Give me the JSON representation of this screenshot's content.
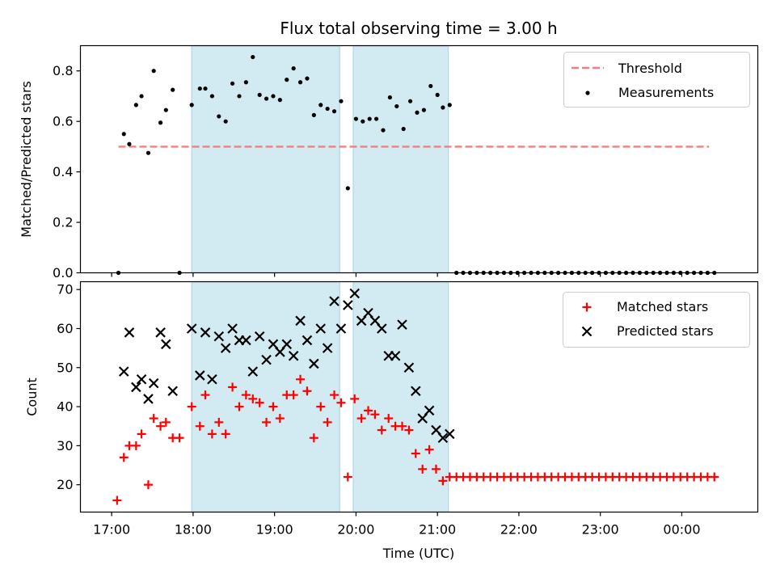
{
  "title": "Flux total observing time = 3.00 h",
  "xlabel": "Time (UTC)",
  "x_ticks": [
    "17:00",
    "18:00",
    "19:00",
    "20:00",
    "21:00",
    "22:00",
    "23:00",
    "00:00"
  ],
  "colors": {
    "threshold": "#f08080",
    "measurement": "#000000",
    "matched": "#ff0000",
    "predicted": "#000000",
    "span_fill": "#add8e6"
  },
  "chart_data": [
    {
      "type": "scatter",
      "ylabel": "Matched/Predicted stars",
      "xlim": [
        "16:37",
        "00:56"
      ],
      "ylim": [
        0,
        0.9
      ],
      "y_ticks": [
        "0.0",
        "0.2",
        "0.4",
        "0.6",
        "0.8"
      ],
      "shaded_spans": [
        [
          "17:59",
          "19:48"
        ],
        [
          "19:58",
          "21:08"
        ]
      ],
      "legend": {
        "placement": "top-right",
        "threshold_label": "Threshold",
        "measurements_label": "Measurements"
      },
      "threshold": {
        "value": 0.5,
        "x_range": [
          "17:05",
          "00:20"
        ]
      },
      "measurements": [
        {
          "t": "17:05",
          "v": 0.0
        },
        {
          "t": "17:09",
          "v": 0.55
        },
        {
          "t": "17:13",
          "v": 0.51
        },
        {
          "t": "17:18",
          "v": 0.665
        },
        {
          "t": "17:22",
          "v": 0.7
        },
        {
          "t": "17:27",
          "v": 0.475
        },
        {
          "t": "17:31",
          "v": 0.8
        },
        {
          "t": "17:36",
          "v": 0.595
        },
        {
          "t": "17:40",
          "v": 0.645
        },
        {
          "t": "17:45",
          "v": 0.725
        },
        {
          "t": "17:50",
          "v": 0.0
        },
        {
          "t": "17:59",
          "v": 0.665
        },
        {
          "t": "18:05",
          "v": 0.73
        },
        {
          "t": "18:09",
          "v": 0.73
        },
        {
          "t": "18:14",
          "v": 0.7
        },
        {
          "t": "18:19",
          "v": 0.62
        },
        {
          "t": "18:24",
          "v": 0.6
        },
        {
          "t": "18:29",
          "v": 0.75
        },
        {
          "t": "18:34",
          "v": 0.7
        },
        {
          "t": "18:39",
          "v": 0.755
        },
        {
          "t": "18:44",
          "v": 0.855
        },
        {
          "t": "18:49",
          "v": 0.705
        },
        {
          "t": "18:54",
          "v": 0.69
        },
        {
          "t": "18:59",
          "v": 0.7
        },
        {
          "t": "19:04",
          "v": 0.685
        },
        {
          "t": "19:09",
          "v": 0.765
        },
        {
          "t": "19:14",
          "v": 0.81
        },
        {
          "t": "19:19",
          "v": 0.755
        },
        {
          "t": "19:24",
          "v": 0.77
        },
        {
          "t": "19:29",
          "v": 0.625
        },
        {
          "t": "19:34",
          "v": 0.665
        },
        {
          "t": "19:39",
          "v": 0.65
        },
        {
          "t": "19:44",
          "v": 0.64
        },
        {
          "t": "19:49",
          "v": 0.68
        },
        {
          "t": "19:54",
          "v": 0.335
        },
        {
          "t": "20:00",
          "v": 0.61
        },
        {
          "t": "20:05",
          "v": 0.6
        },
        {
          "t": "20:10",
          "v": 0.61
        },
        {
          "t": "20:15",
          "v": 0.61
        },
        {
          "t": "20:20",
          "v": 0.565
        },
        {
          "t": "20:25",
          "v": 0.695
        },
        {
          "t": "20:30",
          "v": 0.66
        },
        {
          "t": "20:35",
          "v": 0.57
        },
        {
          "t": "20:40",
          "v": 0.68
        },
        {
          "t": "20:45",
          "v": 0.635
        },
        {
          "t": "20:50",
          "v": 0.645
        },
        {
          "t": "20:55",
          "v": 0.74
        },
        {
          "t": "21:00",
          "v": 0.705
        },
        {
          "t": "21:04",
          "v": 0.655
        },
        {
          "t": "21:09",
          "v": 0.665
        },
        {
          "t": "21:14",
          "v": 0.0
        },
        {
          "t": "21:19",
          "v": 0.0
        },
        {
          "t": "21:24",
          "v": 0.0
        },
        {
          "t": "21:29",
          "v": 0.0
        },
        {
          "t": "21:34",
          "v": 0.0
        },
        {
          "t": "21:39",
          "v": 0.0
        },
        {
          "t": "21:44",
          "v": 0.0
        },
        {
          "t": "21:49",
          "v": 0.0
        },
        {
          "t": "21:54",
          "v": 0.0
        },
        {
          "t": "21:59",
          "v": 0.0
        },
        {
          "t": "22:04",
          "v": 0.0
        },
        {
          "t": "22:09",
          "v": 0.0
        },
        {
          "t": "22:14",
          "v": 0.0
        },
        {
          "t": "22:19",
          "v": 0.0
        },
        {
          "t": "22:24",
          "v": 0.0
        },
        {
          "t": "22:29",
          "v": 0.0
        },
        {
          "t": "22:34",
          "v": 0.0
        },
        {
          "t": "22:39",
          "v": 0.0
        },
        {
          "t": "22:44",
          "v": 0.0
        },
        {
          "t": "22:49",
          "v": 0.0
        },
        {
          "t": "22:54",
          "v": 0.0
        },
        {
          "t": "22:59",
          "v": 0.0
        },
        {
          "t": "23:04",
          "v": 0.0
        },
        {
          "t": "23:09",
          "v": 0.0
        },
        {
          "t": "23:14",
          "v": 0.0
        },
        {
          "t": "23:19",
          "v": 0.0
        },
        {
          "t": "23:24",
          "v": 0.0
        },
        {
          "t": "23:29",
          "v": 0.0
        },
        {
          "t": "23:34",
          "v": 0.0
        },
        {
          "t": "23:39",
          "v": 0.0
        },
        {
          "t": "23:44",
          "v": 0.0
        },
        {
          "t": "23:49",
          "v": 0.0
        },
        {
          "t": "23:54",
          "v": 0.0
        },
        {
          "t": "23:59",
          "v": 0.0
        },
        {
          "t": "00:04",
          "v": 0.0
        },
        {
          "t": "00:09",
          "v": 0.0
        },
        {
          "t": "00:14",
          "v": 0.0
        },
        {
          "t": "00:19",
          "v": 0.0
        },
        {
          "t": "00:24",
          "v": 0.0
        }
      ]
    },
    {
      "type": "scatter",
      "ylabel": "Count",
      "xlim": [
        "16:37",
        "00:56"
      ],
      "ylim": [
        13,
        72
      ],
      "y_ticks": [
        "20",
        "30",
        "40",
        "50",
        "60",
        "70"
      ],
      "shaded_spans": [
        [
          "17:59",
          "19:48"
        ],
        [
          "19:58",
          "21:08"
        ]
      ],
      "legend": {
        "placement": "top-right",
        "matched_label": "Matched stars",
        "predicted_label": "Predicted stars"
      },
      "matched": [
        {
          "t": "17:04",
          "v": 16
        },
        {
          "t": "17:09",
          "v": 27
        },
        {
          "t": "17:13",
          "v": 30
        },
        {
          "t": "17:18",
          "v": 30
        },
        {
          "t": "17:22",
          "v": 33
        },
        {
          "t": "17:27",
          "v": 20
        },
        {
          "t": "17:31",
          "v": 37
        },
        {
          "t": "17:36",
          "v": 35
        },
        {
          "t": "17:40",
          "v": 36
        },
        {
          "t": "17:45",
          "v": 32
        },
        {
          "t": "17:50",
          "v": 32
        },
        {
          "t": "17:59",
          "v": 40
        },
        {
          "t": "18:05",
          "v": 35
        },
        {
          "t": "18:09",
          "v": 43
        },
        {
          "t": "18:14",
          "v": 33
        },
        {
          "t": "18:19",
          "v": 36
        },
        {
          "t": "18:24",
          "v": 33
        },
        {
          "t": "18:29",
          "v": 45
        },
        {
          "t": "18:34",
          "v": 40
        },
        {
          "t": "18:39",
          "v": 43
        },
        {
          "t": "18:44",
          "v": 42
        },
        {
          "t": "18:49",
          "v": 41
        },
        {
          "t": "18:54",
          "v": 36
        },
        {
          "t": "18:59",
          "v": 40
        },
        {
          "t": "19:04",
          "v": 37
        },
        {
          "t": "19:09",
          "v": 43
        },
        {
          "t": "19:14",
          "v": 43
        },
        {
          "t": "19:19",
          "v": 47
        },
        {
          "t": "19:24",
          "v": 44
        },
        {
          "t": "19:29",
          "v": 32
        },
        {
          "t": "19:34",
          "v": 40
        },
        {
          "t": "19:39",
          "v": 36
        },
        {
          "t": "19:44",
          "v": 43
        },
        {
          "t": "19:49",
          "v": 41
        },
        {
          "t": "19:54",
          "v": 22
        },
        {
          "t": "19:59",
          "v": 42
        },
        {
          "t": "20:04",
          "v": 37
        },
        {
          "t": "20:09",
          "v": 39
        },
        {
          "t": "20:14",
          "v": 38
        },
        {
          "t": "20:19",
          "v": 34
        },
        {
          "t": "20:24",
          "v": 37
        },
        {
          "t": "20:29",
          "v": 35
        },
        {
          "t": "20:34",
          "v": 35
        },
        {
          "t": "20:39",
          "v": 34
        },
        {
          "t": "20:44",
          "v": 28
        },
        {
          "t": "20:49",
          "v": 24
        },
        {
          "t": "20:54",
          "v": 29
        },
        {
          "t": "20:59",
          "v": 24
        },
        {
          "t": "21:04",
          "v": 21
        },
        {
          "t": "21:09",
          "v": 22
        },
        {
          "t": "21:14",
          "v": 22
        },
        {
          "t": "21:19",
          "v": 22
        },
        {
          "t": "21:24",
          "v": 22
        },
        {
          "t": "21:29",
          "v": 22
        },
        {
          "t": "21:34",
          "v": 22
        },
        {
          "t": "21:39",
          "v": 22
        },
        {
          "t": "21:44",
          "v": 22
        },
        {
          "t": "21:49",
          "v": 22
        },
        {
          "t": "21:54",
          "v": 22
        },
        {
          "t": "21:59",
          "v": 22
        },
        {
          "t": "22:04",
          "v": 22
        },
        {
          "t": "22:09",
          "v": 22
        },
        {
          "t": "22:14",
          "v": 22
        },
        {
          "t": "22:19",
          "v": 22
        },
        {
          "t": "22:24",
          "v": 22
        },
        {
          "t": "22:29",
          "v": 22
        },
        {
          "t": "22:34",
          "v": 22
        },
        {
          "t": "22:39",
          "v": 22
        },
        {
          "t": "22:44",
          "v": 22
        },
        {
          "t": "22:49",
          "v": 22
        },
        {
          "t": "22:54",
          "v": 22
        },
        {
          "t": "22:59",
          "v": 22
        },
        {
          "t": "23:04",
          "v": 22
        },
        {
          "t": "23:09",
          "v": 22
        },
        {
          "t": "23:14",
          "v": 22
        },
        {
          "t": "23:19",
          "v": 22
        },
        {
          "t": "23:24",
          "v": 22
        },
        {
          "t": "23:29",
          "v": 22
        },
        {
          "t": "23:34",
          "v": 22
        },
        {
          "t": "23:39",
          "v": 22
        },
        {
          "t": "23:44",
          "v": 22
        },
        {
          "t": "23:49",
          "v": 22
        },
        {
          "t": "23:54",
          "v": 22
        },
        {
          "t": "23:59",
          "v": 22
        },
        {
          "t": "00:04",
          "v": 22
        },
        {
          "t": "00:09",
          "v": 22
        },
        {
          "t": "00:14",
          "v": 22
        },
        {
          "t": "00:19",
          "v": 22
        },
        {
          "t": "00:24",
          "v": 22
        }
      ],
      "predicted": [
        {
          "t": "17:09",
          "v": 49
        },
        {
          "t": "17:13",
          "v": 59
        },
        {
          "t": "17:18",
          "v": 45
        },
        {
          "t": "17:22",
          "v": 47
        },
        {
          "t": "17:27",
          "v": 42
        },
        {
          "t": "17:31",
          "v": 46
        },
        {
          "t": "17:36",
          "v": 59
        },
        {
          "t": "17:40",
          "v": 56
        },
        {
          "t": "17:45",
          "v": 44
        },
        {
          "t": "17:59",
          "v": 60
        },
        {
          "t": "18:05",
          "v": 48
        },
        {
          "t": "18:09",
          "v": 59
        },
        {
          "t": "18:14",
          "v": 47
        },
        {
          "t": "18:19",
          "v": 58
        },
        {
          "t": "18:24",
          "v": 55
        },
        {
          "t": "18:29",
          "v": 60
        },
        {
          "t": "18:34",
          "v": 57
        },
        {
          "t": "18:39",
          "v": 57
        },
        {
          "t": "18:44",
          "v": 49
        },
        {
          "t": "18:49",
          "v": 58
        },
        {
          "t": "18:54",
          "v": 52
        },
        {
          "t": "18:59",
          "v": 56
        },
        {
          "t": "19:04",
          "v": 54
        },
        {
          "t": "19:09",
          "v": 56
        },
        {
          "t": "19:14",
          "v": 53
        },
        {
          "t": "19:19",
          "v": 62
        },
        {
          "t": "19:24",
          "v": 57
        },
        {
          "t": "19:29",
          "v": 51
        },
        {
          "t": "19:34",
          "v": 60
        },
        {
          "t": "19:39",
          "v": 55
        },
        {
          "t": "19:44",
          "v": 67
        },
        {
          "t": "19:49",
          "v": 60
        },
        {
          "t": "19:54",
          "v": 66
        },
        {
          "t": "19:59",
          "v": 69
        },
        {
          "t": "20:04",
          "v": 62
        },
        {
          "t": "20:09",
          "v": 64
        },
        {
          "t": "20:14",
          "v": 62
        },
        {
          "t": "20:19",
          "v": 60
        },
        {
          "t": "20:24",
          "v": 53
        },
        {
          "t": "20:29",
          "v": 53
        },
        {
          "t": "20:34",
          "v": 61
        },
        {
          "t": "20:39",
          "v": 50
        },
        {
          "t": "20:44",
          "v": 44
        },
        {
          "t": "20:49",
          "v": 37
        },
        {
          "t": "20:54",
          "v": 39
        },
        {
          "t": "20:59",
          "v": 34
        },
        {
          "t": "21:04",
          "v": 32
        },
        {
          "t": "21:09",
          "v": 33
        }
      ]
    }
  ]
}
